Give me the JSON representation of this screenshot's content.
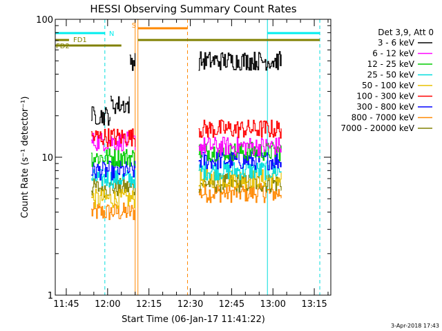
{
  "chart_data": {
    "type": "line",
    "title": "HESSI Observing Summary Count Rates",
    "xlabel": "Start Time (06-Jan-17 11:41:22)",
    "ylabel": "Count Rate (s⁻¹ detector⁻¹)",
    "yscale": "log",
    "xlim": [
      "11:41",
      "13:21"
    ],
    "ylim": [
      1,
      100
    ],
    "xticks": [
      "11:45",
      "12:00",
      "12:15",
      "12:30",
      "12:45",
      "13:00",
      "13:15"
    ],
    "yticks": [
      "1",
      "10",
      "100"
    ],
    "legend_position": "top-right",
    "legend_header": "Det 3,9, Att 0",
    "series": [
      {
        "name": "3 - 6 keV",
        "color": "#000000",
        "segments": [
          {
            "start": "11:54",
            "end": "12:01",
            "level": 20
          },
          {
            "start": "12:01",
            "end": "12:08",
            "level": 24
          },
          {
            "start": "12:08",
            "end": "12:10",
            "level": 50
          },
          {
            "start": "12:33",
            "end": "13:03",
            "level": 50
          }
        ]
      },
      {
        "name": "6 - 12 keV",
        "color": "#ff00ff",
        "segments": [
          {
            "start": "11:54",
            "end": "12:10",
            "level": 13
          },
          {
            "start": "12:33",
            "end": "13:03",
            "level": 12
          }
        ]
      },
      {
        "name": "12 - 25 keV",
        "color": "#00cc00",
        "segments": [
          {
            "start": "11:54",
            "end": "12:10",
            "level": 10
          },
          {
            "start": "12:33",
            "end": "13:03",
            "level": 11
          }
        ]
      },
      {
        "name": "25 - 50 keV",
        "color": "#00dddd",
        "segments": [
          {
            "start": "11:54",
            "end": "12:10",
            "level": 7
          },
          {
            "start": "12:33",
            "end": "13:03",
            "level": 8
          }
        ]
      },
      {
        "name": "50 - 100 keV",
        "color": "#e8c000",
        "segments": [
          {
            "start": "11:54",
            "end": "12:10",
            "level": 5
          },
          {
            "start": "12:33",
            "end": "13:03",
            "level": 7
          }
        ]
      },
      {
        "name": "100 - 300 keV",
        "color": "#ff0000",
        "segments": [
          {
            "start": "11:54",
            "end": "12:10",
            "level": 14
          },
          {
            "start": "12:33",
            "end": "13:03",
            "level": 16
          }
        ]
      },
      {
        "name": "300 - 800 keV",
        "color": "#0000ff",
        "segments": [
          {
            "start": "11:54",
            "end": "12:10",
            "level": 8
          },
          {
            "start": "12:33",
            "end": "13:03",
            "level": 9.5
          }
        ]
      },
      {
        "name": "800 - 7000 keV",
        "color": "#ff8800",
        "segments": [
          {
            "start": "11:54",
            "end": "12:10",
            "level": 4
          },
          {
            "start": "12:33",
            "end": "13:03",
            "level": 5.5
          }
        ]
      },
      {
        "name": "7000 - 20000 keV",
        "color": "#808000",
        "segments": [
          {
            "start": "11:54",
            "end": "12:10",
            "level": 6
          },
          {
            "start": "12:33",
            "end": "13:03",
            "level": 6.5
          }
        ]
      }
    ],
    "vertical_lines": [
      {
        "time": "11:41",
        "color": "#00dddd",
        "style": "solid"
      },
      {
        "time": "11:59",
        "color": "#00dddd",
        "style": "dashed"
      },
      {
        "time": "12:10",
        "color": "#ff8800",
        "style": "solid"
      },
      {
        "time": "12:11",
        "color": "#ff8800",
        "style": "solid"
      },
      {
        "time": "12:29",
        "color": "#ff8800",
        "style": "dashed"
      },
      {
        "time": "12:58",
        "color": "#00dddd",
        "style": "solid"
      },
      {
        "time": "13:17",
        "color": "#00dddd",
        "style": "dashed"
      }
    ],
    "flag_bars": [
      {
        "label": "N",
        "color": "#00eeee",
        "segments": [
          [
            "11:41",
            "11:59"
          ],
          [
            "12:58",
            "13:17"
          ]
        ]
      },
      {
        "label": "S",
        "color": "#ff8800",
        "segments": [
          [
            "12:11",
            "12:29"
          ]
        ]
      },
      {
        "label": "FD1",
        "color": "#808000",
        "segments": [
          [
            "11:41",
            "11:46"
          ],
          [
            "12:11",
            "13:17"
          ]
        ]
      },
      {
        "label": "FD2",
        "color": "#808000",
        "segments": [
          [
            "11:41",
            "12:05"
          ]
        ]
      }
    ],
    "timestamp": "3-Apr-2018 17:43"
  }
}
